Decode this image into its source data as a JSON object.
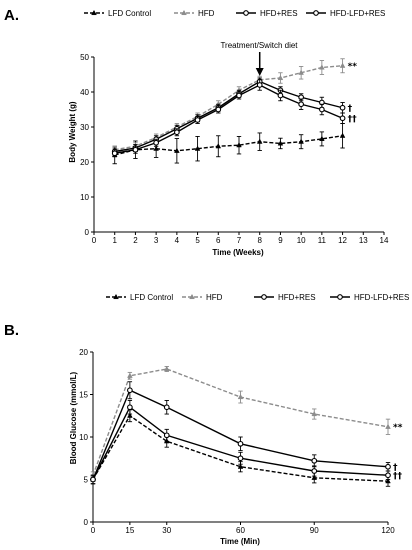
{
  "chart_data": [
    {
      "panel": "A.",
      "type": "line",
      "xlabel": "Time (Weeks)",
      "ylabel": "Body Weight (g)",
      "xlim": [
        0,
        14
      ],
      "ylim": [
        0,
        50
      ],
      "xticks": [
        0,
        1,
        2,
        3,
        4,
        5,
        6,
        7,
        8,
        9,
        10,
        11,
        12,
        13,
        14
      ],
      "yticks": [
        0,
        10,
        20,
        30,
        40,
        50
      ],
      "grid": false,
      "legend_position": "top",
      "annotation": "Treatment/Switch diet",
      "annotation_x": 8,
      "series": [
        {
          "name": "LFD Control",
          "color": "#000000",
          "dash": "dashed",
          "marker": "triangle",
          "x": [
            1,
            2,
            3,
            4,
            5,
            6,
            7,
            8,
            9,
            10,
            11,
            12
          ],
          "y": [
            22,
            23.5,
            23.8,
            23.2,
            23.8,
            24.5,
            24.8,
            25.8,
            25.3,
            25.8,
            26.6,
            27.5
          ],
          "err": [
            2.5,
            2.5,
            2.5,
            3.5,
            3.5,
            3,
            2.5,
            2.5,
            1.5,
            2,
            2,
            3.5
          ],
          "sig": ""
        },
        {
          "name": "HFD",
          "color": "#8c8c8c",
          "dash": "dashed",
          "marker": "triangle",
          "x": [
            1,
            2,
            3,
            4,
            5,
            6,
            7,
            8,
            9,
            10,
            11,
            12
          ],
          "y": [
            23.5,
            24.5,
            27,
            30,
            33,
            36.5,
            40.5,
            43.5,
            44,
            45.5,
            47,
            47.5
          ],
          "err": [
            1,
            1,
            1,
            1,
            1,
            1,
            1,
            1,
            1.5,
            1.8,
            2,
            2
          ],
          "sig": "**"
        },
        {
          "name": "HFD+RES",
          "color": "#000000",
          "dash": "solid",
          "marker": "circle",
          "x": [
            1,
            2,
            3,
            4,
            5,
            6,
            7,
            8,
            9,
            10,
            11,
            12
          ],
          "y": [
            23,
            24,
            26.5,
            29.5,
            32.5,
            35.5,
            39.5,
            43,
            40.5,
            38.5,
            37,
            35.5
          ],
          "err": [
            1,
            1,
            1,
            1,
            1,
            1,
            1,
            1,
            1,
            1,
            1.5,
            1.5
          ],
          "sig": "†"
        },
        {
          "name": "HFD-LFD+RES",
          "color": "#000000",
          "dash": "solid",
          "marker": "circle",
          "x": [
            1,
            2,
            3,
            4,
            5,
            6,
            7,
            8,
            9,
            10,
            11,
            12
          ],
          "y": [
            22.5,
            23.5,
            25.5,
            28.5,
            32,
            35,
            39,
            42,
            39,
            36.5,
            35,
            32.5
          ],
          "err": [
            1,
            1,
            1,
            1,
            1,
            1,
            1,
            1.5,
            1.5,
            1.5,
            1.5,
            1.5
          ],
          "sig": "††"
        }
      ]
    },
    {
      "panel": "B.",
      "type": "line",
      "xlabel": "Time (Min)",
      "ylabel": "Blood Glucose (mmol/L)",
      "xlim": [
        0,
        120
      ],
      "ylim": [
        0,
        20
      ],
      "xticks": [
        0,
        15,
        30,
        60,
        90,
        120
      ],
      "yticks": [
        0,
        5,
        10,
        15,
        20
      ],
      "grid": false,
      "legend_position": "top",
      "series": [
        {
          "name": "LFD Control",
          "color": "#000000",
          "dash": "dashed",
          "marker": "triangle",
          "x": [
            0,
            15,
            30,
            60,
            90,
            120
          ],
          "y": [
            5,
            12.5,
            9.5,
            6.5,
            5.2,
            4.8
          ],
          "err": [
            0.5,
            0.7,
            0.7,
            0.6,
            0.6,
            0.6
          ],
          "sig": ""
        },
        {
          "name": "HFD",
          "color": "#8c8c8c",
          "dash": "dashed",
          "marker": "triangle",
          "x": [
            0,
            15,
            30,
            60,
            90,
            120
          ],
          "y": [
            5.5,
            17.2,
            18,
            14.7,
            12.7,
            11.2
          ],
          "err": [
            0.4,
            0.4,
            0.3,
            0.7,
            0.6,
            0.9
          ],
          "sig": "**"
        },
        {
          "name": "HFD+RES",
          "color": "#000000",
          "dash": "solid",
          "marker": "circle",
          "x": [
            0,
            15,
            30,
            60,
            90,
            120
          ],
          "y": [
            5,
            15.5,
            13.5,
            9.2,
            7.2,
            6.5
          ],
          "err": [
            0.5,
            1,
            0.8,
            0.8,
            0.7,
            0.5
          ],
          "sig": "†"
        },
        {
          "name": "HFD-LFD+RES",
          "color": "#000000",
          "dash": "solid",
          "marker": "circle",
          "x": [
            0,
            15,
            30,
            60,
            90,
            120
          ],
          "y": [
            5,
            13.5,
            10.2,
            7.5,
            6,
            5.5
          ],
          "err": [
            0.5,
            0.8,
            0.7,
            0.7,
            0.6,
            0.5
          ],
          "sig": "††"
        }
      ]
    }
  ]
}
